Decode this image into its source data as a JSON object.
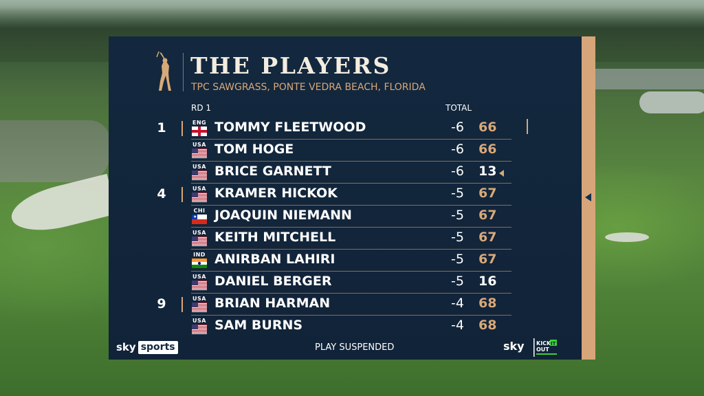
{
  "event": {
    "title": "THE PLAYERS",
    "venue": "TPC SAWGRASS, PONTE VEDRA BEACH, FLORIDA",
    "round_label": "RD 1",
    "total_label": "TOTAL"
  },
  "leaderboard": [
    {
      "pos": "1",
      "country": "ENG",
      "name": "TOMMY FLEETWOOD",
      "total": "-6",
      "thru": "66",
      "finished": true
    },
    {
      "pos": "",
      "country": "USA",
      "name": "TOM HOGE",
      "total": "-6",
      "thru": "66",
      "finished": true
    },
    {
      "pos": "",
      "country": "USA",
      "name": "BRICE GARNETT",
      "total": "-6",
      "thru": "13",
      "finished": false,
      "marker": true
    },
    {
      "pos": "4",
      "country": "USA",
      "name": "KRAMER HICKOK",
      "total": "-5",
      "thru": "67",
      "finished": true
    },
    {
      "pos": "",
      "country": "CHI",
      "name": "JOAQUIN NIEMANN",
      "total": "-5",
      "thru": "67",
      "finished": true
    },
    {
      "pos": "",
      "country": "USA",
      "name": "KEITH MITCHELL",
      "total": "-5",
      "thru": "67",
      "finished": true
    },
    {
      "pos": "",
      "country": "IND",
      "name": "ANIRBAN LAHIRI",
      "total": "-5",
      "thru": "67",
      "finished": true
    },
    {
      "pos": "",
      "country": "USA",
      "name": "DANIEL BERGER",
      "total": "-5",
      "thru": "16",
      "finished": false
    },
    {
      "pos": "9",
      "country": "USA",
      "name": "BRIAN HARMAN",
      "total": "-4",
      "thru": "68",
      "finished": true
    },
    {
      "pos": "",
      "country": "USA",
      "name": "SAM BURNS",
      "total": "-4",
      "thru": "68",
      "finished": true
    }
  ],
  "footer": {
    "broadcaster_word": "sky",
    "broadcaster_box": "sports",
    "status": "PLAY SUSPENDED",
    "right_logo": "sky",
    "kickout_line1": "KICK",
    "kickout_it": "IT",
    "kickout_line2": "OUT"
  },
  "colors": {
    "panel": "#13283e",
    "accent": "#d9a878",
    "sidebar": "#d7a57a"
  },
  "icons": {
    "logo": "golfer-silhouette-icon",
    "side_arrow": "triangle-left-icon",
    "row_marker": "triangle-left-icon"
  }
}
